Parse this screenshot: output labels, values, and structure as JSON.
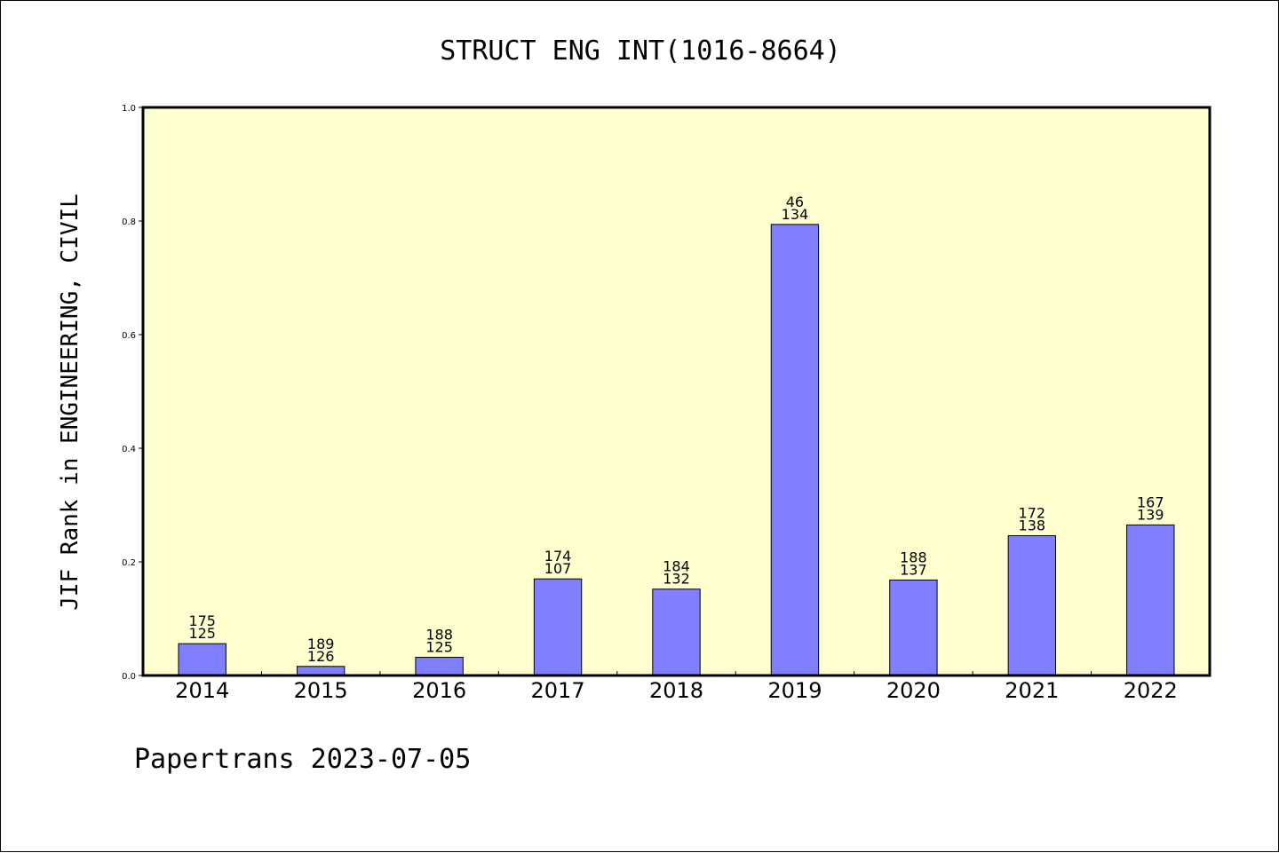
{
  "chart_data": {
    "type": "bar",
    "title": "STRUCT ENG INT(1016-8664)",
    "xlabel": "",
    "ylabel": "JIF Rank in ENGINEERING, CIVIL",
    "ylim": [
      0,
      1.0
    ],
    "yticks": [
      "0.0",
      "0.2",
      "0.4",
      "0.6",
      "0.8",
      "1.0"
    ],
    "yticks_values": [
      0,
      0.2,
      0.4,
      0.6,
      0.8,
      1.0
    ],
    "grid": false,
    "categories": [
      "2014",
      "2015",
      "2016",
      "2017",
      "2018",
      "2019",
      "2020",
      "2021",
      "2022"
    ],
    "values": [
      0.056,
      0.016,
      0.032,
      0.17,
      0.152,
      0.794,
      0.168,
      0.246,
      0.265
    ],
    "labels_top": [
      "175",
      "189",
      "188",
      "174",
      "184",
      "46",
      "188",
      "172",
      "167"
    ],
    "labels_bottom": [
      "125",
      "126",
      "125",
      "107",
      "132",
      "134",
      "137",
      "138",
      "139"
    ],
    "colors": {
      "plot_background": "#ffffd0",
      "bar_fill": "#8080ff",
      "bar_stroke": "#000000"
    }
  },
  "footer": "Papertrans 2023-07-05"
}
